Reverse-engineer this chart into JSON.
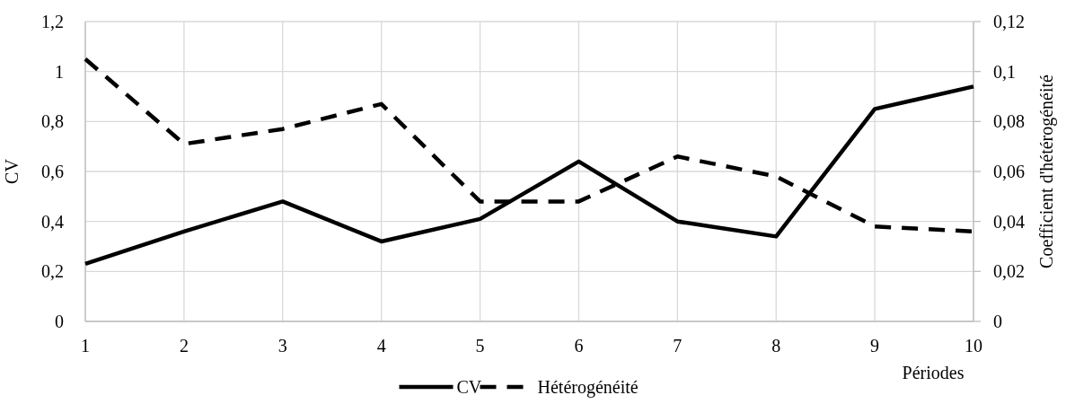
{
  "chart_data": {
    "type": "line",
    "xlabel": "Périodes",
    "ylabel": "CV",
    "y2label": "Coefficient d'hétérogénéité",
    "x": [
      1,
      2,
      3,
      4,
      5,
      6,
      7,
      8,
      9,
      10
    ],
    "xlim": [
      1,
      10
    ],
    "xticks": [
      1,
      2,
      3,
      4,
      5,
      6,
      7,
      8,
      9,
      10
    ],
    "ylim": [
      0,
      1.2
    ],
    "yticks": [
      0,
      {
        "value": 0.2,
        "label": "0,2"
      },
      {
        "value": 0.4,
        "label": "0,4"
      },
      {
        "value": 0.6,
        "label": "0,6"
      },
      {
        "value": 0.8,
        "label": "0,8"
      },
      1,
      {
        "value": 1.2,
        "label": "1,2"
      }
    ],
    "y2lim": [
      0,
      0.12
    ],
    "y2ticks": [
      0,
      {
        "value": 0.02,
        "label": "0,02"
      },
      {
        "value": 0.04,
        "label": "0,04"
      },
      {
        "value": 0.06,
        "label": "0,06"
      },
      {
        "value": 0.08,
        "label": "0,08"
      },
      {
        "value": 0.1,
        "label": "0,1"
      },
      {
        "value": 0.12,
        "label": "0,12"
      }
    ],
    "grid": true,
    "legend": "bottom",
    "marker": "none",
    "series": [
      {
        "name": "CV",
        "color": "#000000",
        "line_style": "solid",
        "values": [
          0.23,
          0.36,
          0.48,
          0.32,
          0.41,
          0.64,
          0.4,
          0.34,
          0.85,
          0.94
        ]
      },
      {
        "name": "Hétérogénéité",
        "color": "#000000",
        "line_style": "dashed",
        "axis": "y2",
        "values": [
          0.105,
          0.071,
          0.077,
          0.087,
          0.048,
          0.048,
          0.066,
          0.058,
          0.038,
          0.036
        ]
      }
    ]
  }
}
